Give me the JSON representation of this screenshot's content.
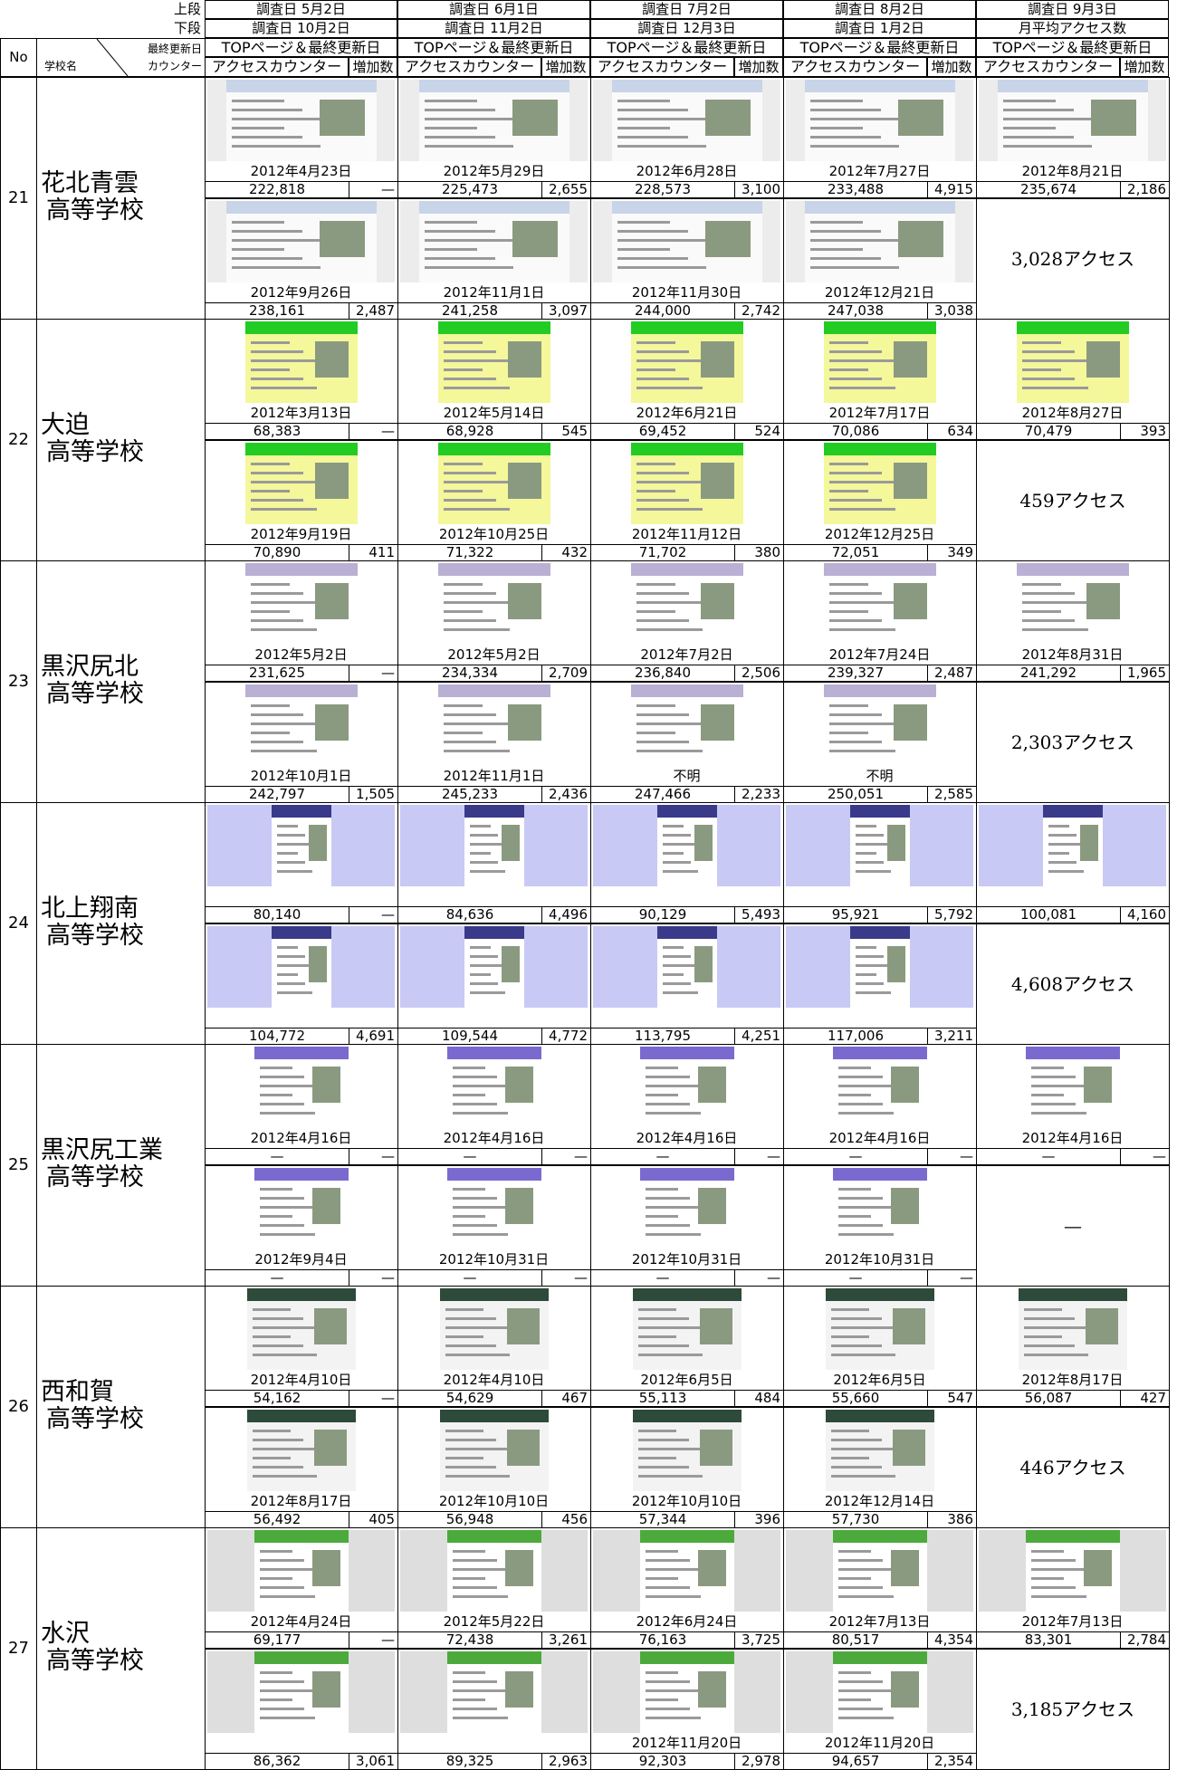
{
  "header": {
    "upper_label": "上段",
    "lower_label": "下段",
    "no_label": "No",
    "school_label": "学校名",
    "date_label": "最終更新日",
    "counter_label": "カウンター",
    "columns": [
      {
        "upper": "調査日 5月2日",
        "lower": "調査日 10月2日",
        "top": "TOPページ＆最終更新日",
        "counter": "アクセスカウンター",
        "increase": "増加数"
      },
      {
        "upper": "調査日 6月1日",
        "lower": "調査日 11月2日",
        "top": "TOPページ＆最終更新日",
        "counter": "アクセスカウンター",
        "increase": "増加数"
      },
      {
        "upper": "調査日 7月2日",
        "lower": "調査日 12月3日",
        "top": "TOPページ＆最終更新日",
        "counter": "アクセスカウンター",
        "increase": "増加数"
      },
      {
        "upper": "調査日 8月2日",
        "lower": "調査日 1月2日",
        "top": "TOPページ＆最終更新日",
        "counter": "アクセスカウンター",
        "increase": "増加数"
      },
      {
        "upper": "調査日 9月3日",
        "lower": "月平均アクセス数",
        "top": "TOPページ＆最終更新日",
        "counter": "アクセスカウンター",
        "increase": "増加数"
      }
    ]
  },
  "schools": [
    {
      "no": "21",
      "name": [
        "花北青雲",
        "高等学校"
      ],
      "upper": [
        {
          "date": "2012年4月23日",
          "counter": "222,818",
          "increase": "—"
        },
        {
          "date": "2012年5月29日",
          "counter": "225,473",
          "increase": "2,655"
        },
        {
          "date": "2012年6月28日",
          "counter": "228,573",
          "increase": "3,100"
        },
        {
          "date": "2012年7月27日",
          "counter": "233,488",
          "increase": "4,915"
        },
        {
          "date": "2012年8月21日",
          "counter": "235,674",
          "increase": "2,186"
        }
      ],
      "lower": [
        {
          "date": "2012年9月26日",
          "counter": "238,161",
          "increase": "2,487"
        },
        {
          "date": "2012年11月1日",
          "counter": "241,258",
          "increase": "3,097"
        },
        {
          "date": "2012年11月30日",
          "counter": "244,000",
          "increase": "2,742"
        },
        {
          "date": "2012年12月21日",
          "counter": "247,038",
          "increase": "3,038"
        }
      ],
      "average": "3,028アクセス"
    },
    {
      "no": "22",
      "name": [
        "大迫",
        "高等学校"
      ],
      "upper": [
        {
          "date": "2012年3月13日",
          "counter": "68,383",
          "increase": "—"
        },
        {
          "date": "2012年5月14日",
          "counter": "68,928",
          "increase": "545"
        },
        {
          "date": "2012年6月21日",
          "counter": "69,452",
          "increase": "524"
        },
        {
          "date": "2012年7月17日",
          "counter": "70,086",
          "increase": "634"
        },
        {
          "date": "2012年8月27日",
          "counter": "70,479",
          "increase": "393"
        }
      ],
      "lower": [
        {
          "date": "2012年9月19日",
          "counter": "70,890",
          "increase": "411"
        },
        {
          "date": "2012年10月25日",
          "counter": "71,322",
          "increase": "432"
        },
        {
          "date": "2012年11月12日",
          "counter": "71,702",
          "increase": "380"
        },
        {
          "date": "2012年12月25日",
          "counter": "72,051",
          "increase": "349"
        }
      ],
      "average": "459アクセス"
    },
    {
      "no": "23",
      "name": [
        "黒沢尻北",
        "高等学校"
      ],
      "upper": [
        {
          "date": "2012年5月2日",
          "counter": "231,625",
          "increase": "—"
        },
        {
          "date": "2012年5月2日",
          "counter": "234,334",
          "increase": "2,709"
        },
        {
          "date": "2012年7月2日",
          "counter": "236,840",
          "increase": "2,506"
        },
        {
          "date": "2012年7月24日",
          "counter": "239,327",
          "increase": "2,487"
        },
        {
          "date": "2012年8月31日",
          "counter": "241,292",
          "increase": "1,965"
        }
      ],
      "lower": [
        {
          "date": "2012年10月1日",
          "counter": "242,797",
          "increase": "1,505"
        },
        {
          "date": "2012年11月1日",
          "counter": "245,233",
          "increase": "2,436"
        },
        {
          "date": "不明",
          "counter": "247,466",
          "increase": "2,233"
        },
        {
          "date": "不明",
          "counter": "250,051",
          "increase": "2,585"
        }
      ],
      "average": "2,303アクセス"
    },
    {
      "no": "24",
      "name": [
        "北上翔南",
        "高等学校"
      ],
      "upper": [
        {
          "date": null,
          "counter": "80,140",
          "increase": "—"
        },
        {
          "date": null,
          "counter": "84,636",
          "increase": "4,496"
        },
        {
          "date": null,
          "counter": "90,129",
          "increase": "5,493"
        },
        {
          "date": null,
          "counter": "95,921",
          "increase": "5,792"
        },
        {
          "date": null,
          "counter": "100,081",
          "increase": "4,160"
        }
      ],
      "lower": [
        {
          "date": null,
          "counter": "104,772",
          "increase": "4,691"
        },
        {
          "date": null,
          "counter": "109,544",
          "increase": "4,772"
        },
        {
          "date": null,
          "counter": "113,795",
          "increase": "4,251"
        },
        {
          "date": null,
          "counter": "117,006",
          "increase": "3,211"
        }
      ],
      "average": "4,608アクセス"
    },
    {
      "no": "25",
      "name": [
        "黒沢尻工業",
        "高等学校"
      ],
      "upper": [
        {
          "date": "2012年4月16日",
          "counter": "—",
          "increase": "—"
        },
        {
          "date": "2012年4月16日",
          "counter": "—",
          "increase": "—"
        },
        {
          "date": "2012年4月16日",
          "counter": "—",
          "increase": "—"
        },
        {
          "date": "2012年4月16日",
          "counter": "—",
          "increase": "—"
        },
        {
          "date": "2012年4月16日",
          "counter": "—",
          "increase": "—"
        }
      ],
      "lower": [
        {
          "date": "2012年9月4日",
          "counter": "—",
          "increase": "—"
        },
        {
          "date": "2012年10月31日",
          "counter": "—",
          "increase": "—"
        },
        {
          "date": "2012年10月31日",
          "counter": "—",
          "increase": "—"
        },
        {
          "date": "2012年10月31日",
          "counter": "—",
          "increase": "—"
        }
      ],
      "average": "—"
    },
    {
      "no": "26",
      "name": [
        "西和賀",
        "高等学校"
      ],
      "upper": [
        {
          "date": "2012年4月10日",
          "counter": "54,162",
          "increase": "—"
        },
        {
          "date": "2012年4月10日",
          "counter": "54,629",
          "increase": "467"
        },
        {
          "date": "2012年6月5日",
          "counter": "55,113",
          "increase": "484"
        },
        {
          "date": "2012年6月5日",
          "counter": "55,660",
          "increase": "547"
        },
        {
          "date": "2012年8月17日",
          "counter": "56,087",
          "increase": "427"
        }
      ],
      "lower": [
        {
          "date": "2012年8月17日",
          "counter": "56,492",
          "increase": "405"
        },
        {
          "date": "2012年10月10日",
          "counter": "56,948",
          "increase": "456"
        },
        {
          "date": "2012年10月10日",
          "counter": "57,344",
          "increase": "396"
        },
        {
          "date": "2012年12月14日",
          "counter": "57,730",
          "increase": "386"
        }
      ],
      "average": "446アクセス"
    },
    {
      "no": "27",
      "name": [
        "水沢",
        "高等学校"
      ],
      "upper": [
        {
          "date": "2012年4月24日",
          "counter": "69,177",
          "increase": "—"
        },
        {
          "date": "2012年5月22日",
          "counter": "72,438",
          "increase": "3,261"
        },
        {
          "date": "2012年6月24日",
          "counter": "76,163",
          "increase": "3,725"
        },
        {
          "date": "2012年7月13日",
          "counter": "80,517",
          "increase": "4,354"
        },
        {
          "date": "2012年7月13日",
          "counter": "83,301",
          "increase": "2,784"
        }
      ],
      "lower": [
        {
          "date": null,
          "counter": "86,362",
          "increase": "3,061"
        },
        {
          "date": null,
          "counter": "89,325",
          "increase": "2,963"
        },
        {
          "date": "2012年11月20日",
          "counter": "92,303",
          "increase": "2,978"
        },
        {
          "date": "2012年11月20日",
          "counter": "94,657",
          "increase": "2,354"
        }
      ],
      "average": "3,185アクセス"
    }
  ]
}
